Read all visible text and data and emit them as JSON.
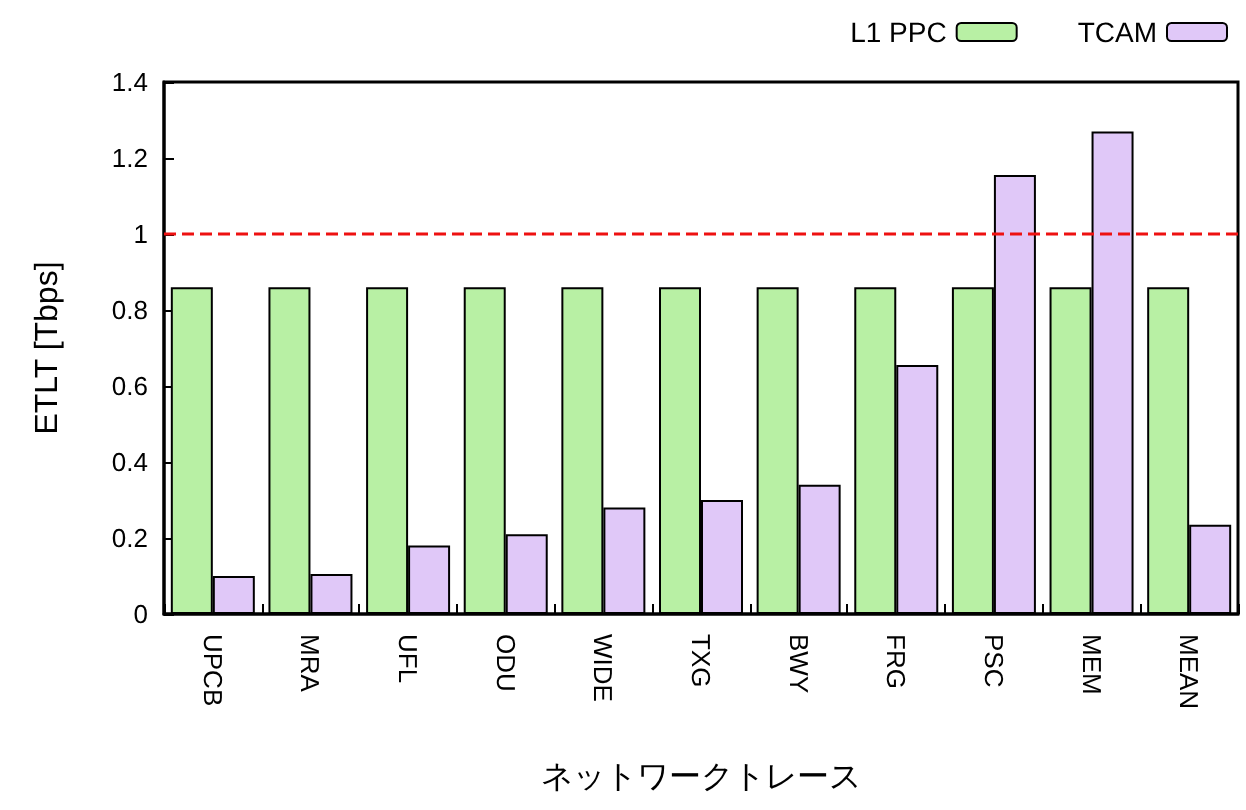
{
  "chart_data": {
    "type": "bar",
    "xlabel": "ネットワークトレース",
    "ylabel": "ETLT [Tbps]",
    "categories": [
      "UPCB",
      "MRA",
      "UFL",
      "ODU",
      "WIDE",
      "TXG",
      "BWY",
      "FRG",
      "PSC",
      "MEM",
      "MEAN"
    ],
    "series": [
      {
        "name": "L1 PPC",
        "color": "#b8f0a4",
        "values": [
          0.86,
          0.86,
          0.86,
          0.86,
          0.86,
          0.86,
          0.86,
          0.86,
          0.86,
          0.86,
          0.86
        ]
      },
      {
        "name": "TCAM",
        "color": "#e0c8f8",
        "values": [
          0.1,
          0.105,
          0.18,
          0.21,
          0.28,
          0.3,
          0.34,
          0.655,
          1.155,
          1.27,
          0.235
        ]
      }
    ],
    "ylim": [
      0,
      1.4
    ],
    "yticks": [
      0,
      0.2,
      0.4,
      0.6,
      0.8,
      1,
      1.2,
      1.4
    ],
    "ref_lines": [
      {
        "axis": "y",
        "value": 1,
        "color": "#ee1111",
        "line_style": "dashed"
      }
    ],
    "legend": "top right",
    "grid": false
  }
}
